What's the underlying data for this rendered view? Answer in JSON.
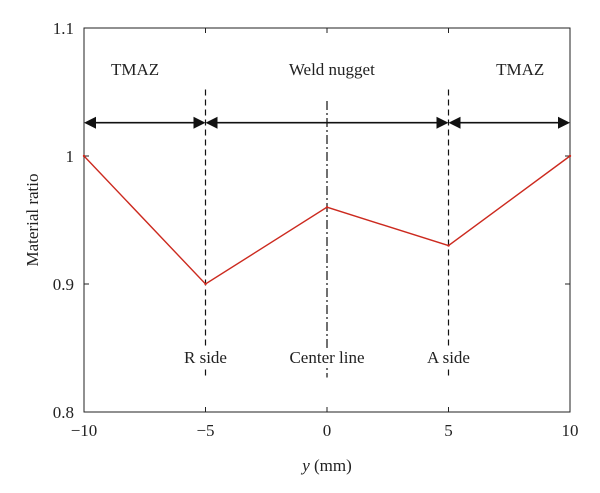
{
  "chart_data": {
    "type": "line",
    "title": "",
    "xlabel_var": "y",
    "xlabel_unit": " (mm)",
    "ylabel": "Material ratio",
    "xlim": [
      -10,
      10
    ],
    "ylim": [
      0.8,
      1.1
    ],
    "xticks": [
      -10,
      -5,
      0,
      5,
      10
    ],
    "xtick_labels": [
      "−10",
      "−5",
      "0",
      "5",
      "10"
    ],
    "yticks": [
      0.8,
      0.9,
      1.0,
      1.1
    ],
    "ytick_labels": [
      "0.8",
      "0.9",
      "1",
      "1.1"
    ],
    "grid": false,
    "series": [
      {
        "name": "Material ratio",
        "color": "#cc2a1f",
        "x": [
          -10,
          -5,
          0,
          5,
          10
        ],
        "values": [
          1.0,
          0.9,
          0.96,
          0.93,
          1.0
        ]
      }
    ],
    "vertical_lines": [
      {
        "x": -5,
        "style": "dashed",
        "y_from": 0.826,
        "y_to": 1.052,
        "label": "R side",
        "label_y": 0.843
      },
      {
        "x": 0,
        "style": "dashdot",
        "y_from": 0.827,
        "y_to": 1.043,
        "label": "Center line",
        "label_y": 0.843
      },
      {
        "x": 5,
        "style": "dashed",
        "y_from": 0.826,
        "y_to": 1.052,
        "label": "A side",
        "label_y": 0.843
      }
    ],
    "regions": [
      {
        "label": "TMAZ",
        "from": -10,
        "to": -5,
        "label_x": -7.9
      },
      {
        "label": "Weld nugget",
        "from": -5,
        "to": 5,
        "label_x": 0.2
      },
      {
        "label": "TMAZ",
        "from": 5,
        "to": 10,
        "label_x": 7.95
      }
    ],
    "region_arrow_y": 1.026,
    "region_label_y": 1.068
  }
}
